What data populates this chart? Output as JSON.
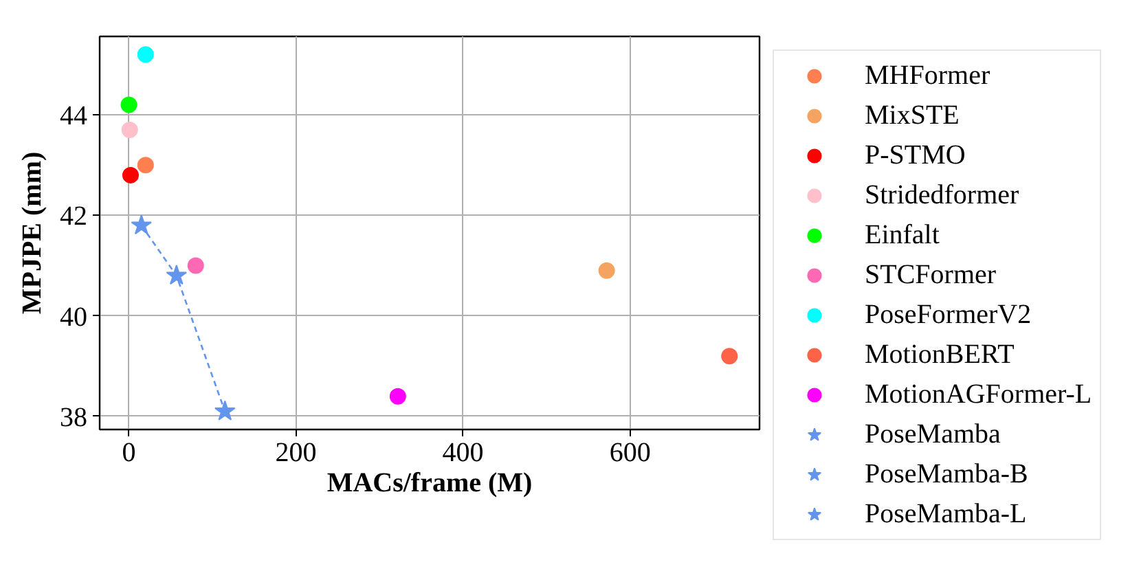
{
  "chart_data": {
    "type": "scatter",
    "xlabel": "MACs/frame (M)",
    "ylabel": "MPJPE (mm)",
    "xlim": [
      -35,
      755
    ],
    "ylim": [
      37.74,
      45.56
    ],
    "xticks": [
      0,
      200,
      400,
      600
    ],
    "yticks": [
      38,
      40,
      42,
      44
    ],
    "grid": true,
    "legend": "right",
    "series": [
      {
        "name": "MHFormer",
        "color": "#ff7f50",
        "marker": "circle",
        "x": [
          20
        ],
        "values": [
          43.0
        ]
      },
      {
        "name": "MixSTE",
        "color": "#f4a460",
        "marker": "circle",
        "x": [
          572
        ],
        "values": [
          40.9
        ]
      },
      {
        "name": "P-STMO",
        "color": "#ff0000",
        "marker": "circle",
        "x": [
          2
        ],
        "values": [
          42.8
        ]
      },
      {
        "name": "Stridedformer",
        "color": "#ffc0cb",
        "marker": "circle",
        "x": [
          1
        ],
        "values": [
          43.7
        ]
      },
      {
        "name": "Einfalt",
        "color": "#00ff00",
        "marker": "circle",
        "x": [
          0
        ],
        "values": [
          44.2
        ]
      },
      {
        "name": "STCFormer",
        "color": "#ff69b4",
        "marker": "circle",
        "x": [
          80
        ],
        "values": [
          41.0
        ]
      },
      {
        "name": "PoseFormerV2",
        "color": "#00ffff",
        "marker": "circle",
        "x": [
          20
        ],
        "values": [
          45.2
        ]
      },
      {
        "name": "MotionBERT",
        "color": "#ff6347",
        "marker": "circle",
        "x": [
          719
        ],
        "values": [
          39.2
        ]
      },
      {
        "name": "MotionAGFormer-L",
        "color": "#ff00ff",
        "marker": "circle",
        "x": [
          322
        ],
        "values": [
          38.4
        ]
      },
      {
        "type": "line",
        "color": "#6495ed",
        "marker": "none",
        "line_style": "dashed",
        "x": [
          15,
          57,
          115
        ],
        "values": [
          41.8,
          40.8,
          38.1
        ]
      },
      {
        "name": "PoseMamba",
        "color": "#6495ed",
        "marker": "star",
        "x": [
          15
        ],
        "values": [
          41.8
        ]
      },
      {
        "name": "PoseMamba-B",
        "color": "#6495ed",
        "marker": "star",
        "x": [
          57
        ],
        "values": [
          40.8
        ]
      },
      {
        "name": "PoseMamba-L",
        "color": "#6495ed",
        "marker": "star",
        "x": [
          115
        ],
        "values": [
          38.1
        ]
      }
    ]
  }
}
